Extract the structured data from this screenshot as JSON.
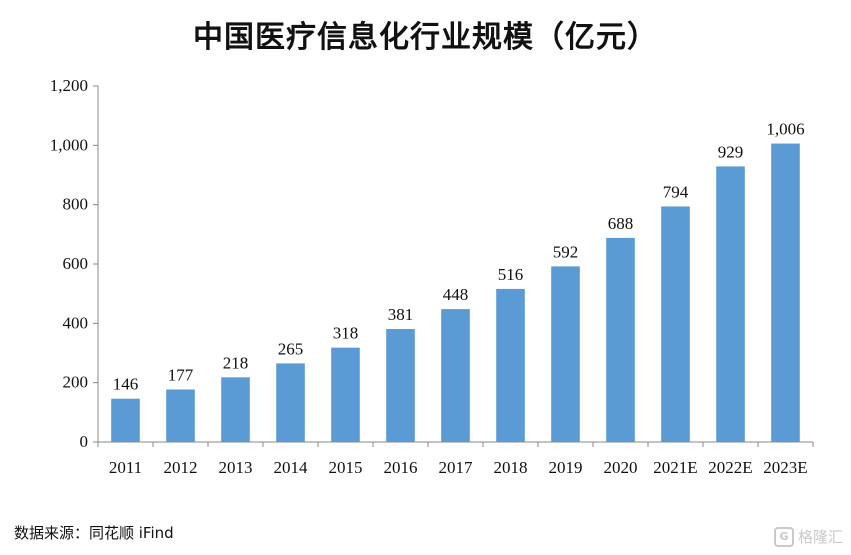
{
  "chart_data": {
    "type": "bar",
    "title": "中国医疗信息化行业规模（亿元）",
    "categories": [
      "2011",
      "2012",
      "2013",
      "2014",
      "2015",
      "2016",
      "2017",
      "2018",
      "2019",
      "2020",
      "2021E",
      "2022E",
      "2023E"
    ],
    "values": [
      146,
      177,
      218,
      265,
      318,
      381,
      448,
      516,
      592,
      688,
      794,
      929,
      1006
    ],
    "data_labels": [
      "146",
      "177",
      "218",
      "265",
      "318",
      "381",
      "448",
      "516",
      "592",
      "688",
      "794",
      "929",
      "1,006"
    ],
    "ylim": [
      0,
      1200
    ],
    "yticks": [
      0,
      200,
      400,
      600,
      800,
      1000,
      1200
    ],
    "ytick_labels": [
      "0",
      "200",
      "400",
      "600",
      "800",
      "1,000",
      "1,200"
    ],
    "bar_color": "#5b9bd5",
    "grid": false,
    "legend": "none"
  },
  "source": "数据来源：同花顺 iFind",
  "watermark": {
    "logo": "G",
    "text": "格隆汇"
  }
}
